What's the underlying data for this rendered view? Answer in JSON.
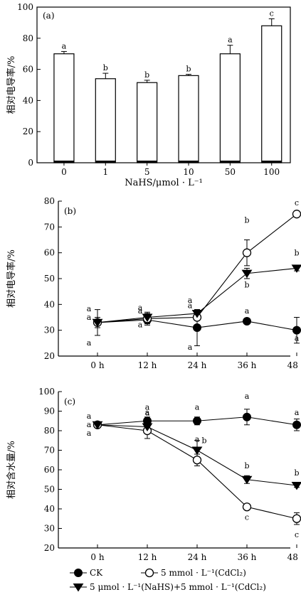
{
  "chart_data": [
    {
      "type": "bar",
      "panel_label": "(a)",
      "categories": [
        "0",
        "1",
        "5",
        "10",
        "50",
        "100"
      ],
      "values": [
        70,
        54,
        51.5,
        56,
        70,
        88
      ],
      "errors": [
        1.5,
        3.5,
        1.5,
        0.8,
        5.5,
        4.5
      ],
      "letters": [
        "a",
        "b",
        "b",
        "b",
        "a",
        "c"
      ],
      "xlabel": "NaHS/μmol · L⁻¹",
      "ylabel": "相对电导率/%",
      "ylim": [
        0,
        100
      ],
      "yticks": [
        "0",
        "20",
        "40",
        "60",
        "80",
        "100"
      ],
      "grid": false
    },
    {
      "type": "line",
      "panel_label": "(b)",
      "categories": [
        "0 h",
        "12 h",
        "24 h",
        "36 h",
        "48 h"
      ],
      "xlabel": "",
      "ylabel": "相对电导率/%",
      "ylim": [
        20,
        80
      ],
      "yticks": [
        "20",
        "30",
        "40",
        "50",
        "60",
        "70",
        "80"
      ],
      "grid": false,
      "series": [
        {
          "values": [
            33,
            34,
            31,
            33.5,
            30
          ],
          "errors": [
            5,
            2,
            7,
            1,
            5
          ],
          "letters": [
            "a",
            "a",
            "a",
            "a",
            "a"
          ]
        },
        {
          "values": [
            33,
            34.5,
            35,
            60,
            75
          ],
          "errors": [
            2,
            2,
            3,
            5,
            1
          ],
          "letters": [
            "a",
            "a",
            "a",
            "b",
            "c"
          ]
        },
        {
          "values": [
            33,
            35,
            36.5,
            52,
            54
          ],
          "errors": [
            2,
            2,
            1.5,
            2,
            1
          ],
          "letters": [
            "a",
            "a",
            "a",
            "b",
            "b"
          ]
        }
      ]
    },
    {
      "type": "line",
      "panel_label": "(c)",
      "categories": [
        "0 h",
        "12 h",
        "24 h",
        "36 h",
        "48 h"
      ],
      "xlabel": "",
      "ylabel": "相对含水量/%",
      "ylim": [
        20,
        100
      ],
      "yticks": [
        "20",
        "30",
        "40",
        "50",
        "60",
        "70",
        "80",
        "90",
        "100"
      ],
      "grid": false,
      "series": [
        {
          "values": [
            83,
            85,
            85,
            87,
            83
          ],
          "errors": [
            1,
            2,
            2,
            4,
            3
          ],
          "letters": [
            "a",
            "a",
            "a",
            "a",
            "a"
          ]
        },
        {
          "values": [
            83,
            80,
            65,
            41,
            35
          ],
          "errors": [
            1,
            4,
            3,
            1,
            3
          ],
          "letters": [
            "a",
            "a",
            "a",
            "c",
            "c"
          ]
        },
        {
          "values": [
            83,
            82,
            70,
            55,
            52
          ],
          "errors": [
            1,
            2,
            5,
            2,
            1
          ],
          "letters": [
            "a",
            "a",
            "b",
            "b",
            "b"
          ]
        }
      ]
    }
  ],
  "legend": {
    "items": [
      {
        "label": "CK",
        "marker": "filled-circle"
      },
      {
        "label": "5 mmol · L⁻¹(CdCl₂)",
        "marker": "open-circle"
      },
      {
        "label": "5 μmol · L⁻¹(NaHS)+5 mmol · L⁻¹(CdCl₂)",
        "marker": "filled-triangle-down"
      }
    ]
  }
}
